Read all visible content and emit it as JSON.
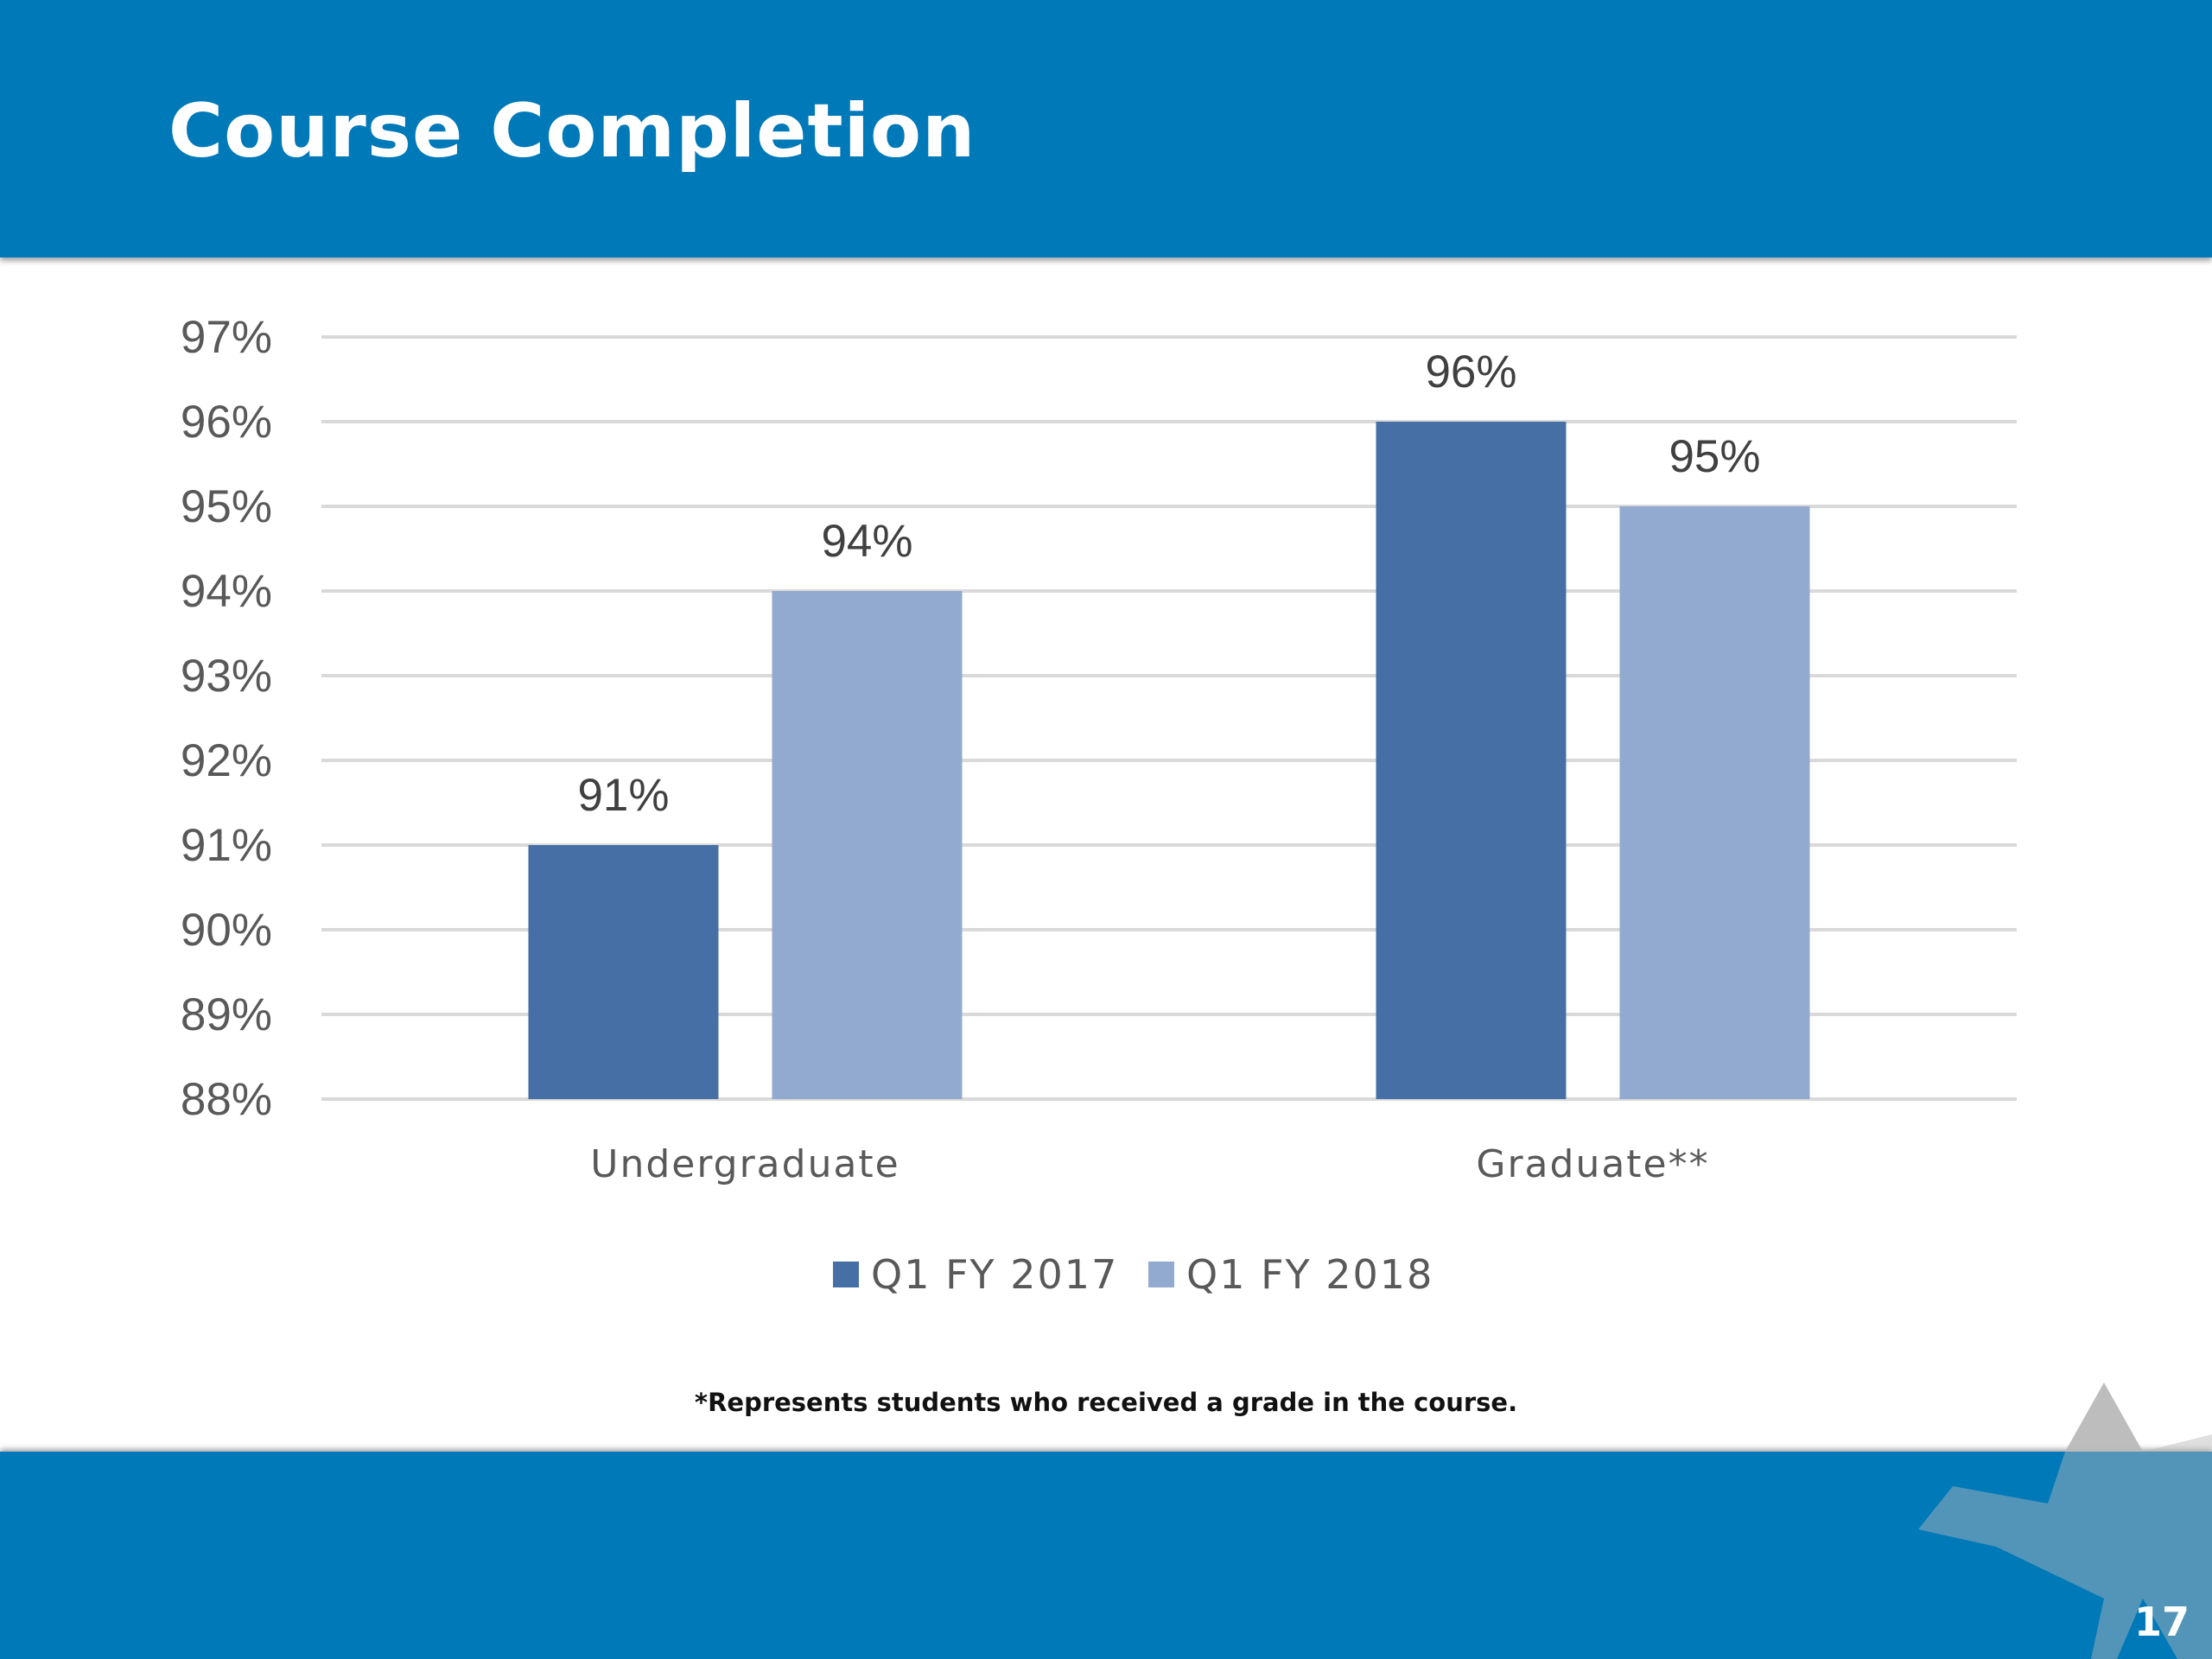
{
  "slide": {
    "title": "Course Completion",
    "footnote": "*Represents students who received a grade in the course.",
    "page_number": "17"
  },
  "colors": {
    "banner": "#0079b9",
    "series_1": "#4670a5",
    "series_2": "#93aad0",
    "gridline": "#d9d9d9",
    "star_logo": "#b9b9b9"
  },
  "icons": {
    "logo": "star-icon"
  },
  "chart_data": {
    "type": "bar",
    "categories": [
      "Undergraduate",
      "Graduate**"
    ],
    "series": [
      {
        "name": "Q1 FY 2017",
        "values": [
          91,
          96
        ],
        "labels": [
          "91%",
          "96%"
        ]
      },
      {
        "name": "Q1 FY 2018",
        "values": [
          94,
          95
        ],
        "labels": [
          "94%",
          "95%"
        ]
      }
    ],
    "ylim": [
      88,
      97
    ],
    "yticks": [
      88,
      89,
      90,
      91,
      92,
      93,
      94,
      95,
      96,
      97
    ],
    "ytick_labels": [
      "88%",
      "89%",
      "90%",
      "91%",
      "92%",
      "93%",
      "94%",
      "95%",
      "96%",
      "97%"
    ],
    "grid": true,
    "legend": "bottom-center",
    "title": "",
    "xlabel": "",
    "ylabel": ""
  }
}
